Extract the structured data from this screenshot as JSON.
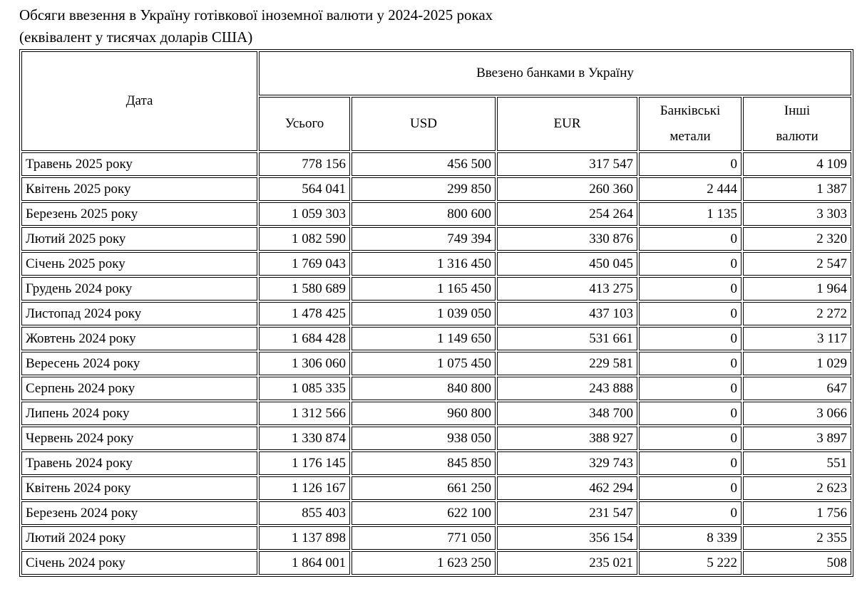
{
  "page": {
    "title_line1": "Обсяги ввезення в Україну готівкової іноземної валюти у 2024-2025 роках",
    "title_line2": "(еквівалент у тисячах доларів США)"
  },
  "colors": {
    "text": "#000000",
    "border": "#000000",
    "background": "#ffffff"
  },
  "table": {
    "corner_header": "Дата",
    "group_header": "Ввезено банками в Україну",
    "sub_headers": [
      "Усього",
      "USD",
      "EUR",
      "Банківські\nметали",
      "Інші\nвалюти"
    ],
    "rows": [
      [
        "Травень 2025 року",
        "778 156",
        "456 500",
        "317 547",
        "0",
        "4 109"
      ],
      [
        "Квітень 2025 року",
        "564 041",
        "299 850",
        "260 360",
        "2 444",
        "1 387"
      ],
      [
        "Березень 2025 року",
        "1 059 303",
        "800 600",
        "254 264",
        "1 135",
        "3 303"
      ],
      [
        "Лютий 2025 року",
        "1 082 590",
        "749 394",
        "330 876",
        "0",
        "2 320"
      ],
      [
        "Січень 2025 року",
        "1 769 043",
        "1 316 450",
        "450 045",
        "0",
        "2 547"
      ],
      [
        "Грудень 2024 року",
        "1 580 689",
        "1 165 450",
        "413 275",
        "0",
        "1 964"
      ],
      [
        "Листопад 2024 року",
        "1 478 425",
        "1 039 050",
        "437 103",
        "0",
        "2 272"
      ],
      [
        "Жовтень 2024 року",
        "1 684 428",
        "1 149 650",
        "531 661",
        "0",
        "3 117"
      ],
      [
        "Вересень 2024 року",
        "1 306 060",
        "1 075 450",
        "229 581",
        "0",
        "1 029"
      ],
      [
        "Серпень 2024 року",
        "1 085 335",
        "840 800",
        "243 888",
        "0",
        "647"
      ],
      [
        "Липень 2024 року",
        "1 312 566",
        "960 800",
        "348 700",
        "0",
        "3 066"
      ],
      [
        "Червень 2024 року",
        "1 330 874",
        "938 050",
        "388 927",
        "0",
        "3 897"
      ],
      [
        "Травень 2024 року",
        "1 176 145",
        "845 850",
        "329 743",
        "0",
        "551"
      ],
      [
        "Квітень 2024 року",
        "1 126 167",
        "661 250",
        "462 294",
        "0",
        "2 623"
      ],
      [
        "Березень 2024 року",
        "855 403",
        "622 100",
        "231 547",
        "0",
        "1 756"
      ],
      [
        "Лютий 2024 року",
        "1 137 898",
        "771 050",
        "356 154",
        "8 339",
        "2 355"
      ],
      [
        "Січень 2024 року",
        "1 864 001",
        "1 623 250",
        "235 021",
        "5 222",
        "508"
      ]
    ]
  }
}
